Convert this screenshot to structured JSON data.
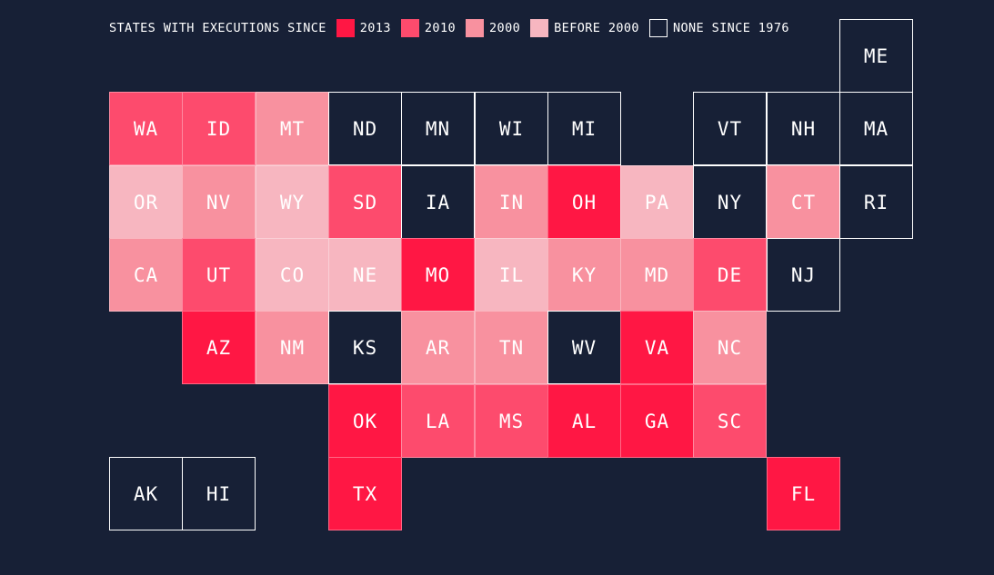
{
  "chart_data": {
    "type": "heatmap",
    "legend": {
      "title": "STATES WITH EXECUTIONS SINCE",
      "items": [
        {
          "key": "2013",
          "label": "2013",
          "color": "#ff1744"
        },
        {
          "key": "2010",
          "label": "2010",
          "color": "#fd4b6d"
        },
        {
          "key": "2000",
          "label": "2000",
          "color": "#f8919f"
        },
        {
          "key": "before2000",
          "label": "BEFORE 2000",
          "color": "#f7b6c0"
        },
        {
          "key": "none",
          "label": "NONE SINCE 1976",
          "color": "#172036"
        }
      ]
    },
    "states": [
      {
        "abbr": "ME",
        "category": "none",
        "col": 10,
        "row": 0
      },
      {
        "abbr": "WA",
        "category": "2010",
        "col": 0,
        "row": 1
      },
      {
        "abbr": "ID",
        "category": "2010",
        "col": 1,
        "row": 1
      },
      {
        "abbr": "MT",
        "category": "2000",
        "col": 2,
        "row": 1
      },
      {
        "abbr": "ND",
        "category": "none",
        "col": 3,
        "row": 1
      },
      {
        "abbr": "MN",
        "category": "none",
        "col": 4,
        "row": 1
      },
      {
        "abbr": "WI",
        "category": "none",
        "col": 5,
        "row": 1
      },
      {
        "abbr": "MI",
        "category": "none",
        "col": 6,
        "row": 1
      },
      {
        "abbr": "VT",
        "category": "none",
        "col": 8,
        "row": 1
      },
      {
        "abbr": "NH",
        "category": "none",
        "col": 9,
        "row": 1
      },
      {
        "abbr": "MA",
        "category": "none",
        "col": 10,
        "row": 1
      },
      {
        "abbr": "OR",
        "category": "before2000",
        "col": 0,
        "row": 2
      },
      {
        "abbr": "NV",
        "category": "2000",
        "col": 1,
        "row": 2
      },
      {
        "abbr": "WY",
        "category": "before2000",
        "col": 2,
        "row": 2
      },
      {
        "abbr": "SD",
        "category": "2010",
        "col": 3,
        "row": 2
      },
      {
        "abbr": "IA",
        "category": "none",
        "col": 4,
        "row": 2
      },
      {
        "abbr": "IN",
        "category": "2000",
        "col": 5,
        "row": 2
      },
      {
        "abbr": "OH",
        "category": "2013",
        "col": 6,
        "row": 2
      },
      {
        "abbr": "PA",
        "category": "before2000",
        "col": 7,
        "row": 2
      },
      {
        "abbr": "NY",
        "category": "none",
        "col": 8,
        "row": 2
      },
      {
        "abbr": "CT",
        "category": "2000",
        "col": 9,
        "row": 2
      },
      {
        "abbr": "RI",
        "category": "none",
        "col": 10,
        "row": 2
      },
      {
        "abbr": "CA",
        "category": "2000",
        "col": 0,
        "row": 3
      },
      {
        "abbr": "UT",
        "category": "2010",
        "col": 1,
        "row": 3
      },
      {
        "abbr": "CO",
        "category": "before2000",
        "col": 2,
        "row": 3
      },
      {
        "abbr": "NE",
        "category": "before2000",
        "col": 3,
        "row": 3
      },
      {
        "abbr": "MO",
        "category": "2013",
        "col": 4,
        "row": 3
      },
      {
        "abbr": "IL",
        "category": "before2000",
        "col": 5,
        "row": 3
      },
      {
        "abbr": "KY",
        "category": "2000",
        "col": 6,
        "row": 3
      },
      {
        "abbr": "MD",
        "category": "2000",
        "col": 7,
        "row": 3
      },
      {
        "abbr": "DE",
        "category": "2010",
        "col": 8,
        "row": 3
      },
      {
        "abbr": "NJ",
        "category": "none",
        "col": 9,
        "row": 3
      },
      {
        "abbr": "AZ",
        "category": "2013",
        "col": 1,
        "row": 4
      },
      {
        "abbr": "NM",
        "category": "2000",
        "col": 2,
        "row": 4
      },
      {
        "abbr": "KS",
        "category": "none",
        "col": 3,
        "row": 4
      },
      {
        "abbr": "AR",
        "category": "2000",
        "col": 4,
        "row": 4
      },
      {
        "abbr": "TN",
        "category": "2000",
        "col": 5,
        "row": 4
      },
      {
        "abbr": "WV",
        "category": "none",
        "col": 6,
        "row": 4
      },
      {
        "abbr": "VA",
        "category": "2013",
        "col": 7,
        "row": 4
      },
      {
        "abbr": "NC",
        "category": "2000",
        "col": 8,
        "row": 4
      },
      {
        "abbr": "OK",
        "category": "2013",
        "col": 3,
        "row": 5
      },
      {
        "abbr": "LA",
        "category": "2010",
        "col": 4,
        "row": 5
      },
      {
        "abbr": "MS",
        "category": "2010",
        "col": 5,
        "row": 5
      },
      {
        "abbr": "AL",
        "category": "2013",
        "col": 6,
        "row": 5
      },
      {
        "abbr": "GA",
        "category": "2013",
        "col": 7,
        "row": 5
      },
      {
        "abbr": "SC",
        "category": "2010",
        "col": 8,
        "row": 5
      },
      {
        "abbr": "AK",
        "category": "none",
        "col": 0,
        "row": 6
      },
      {
        "abbr": "HI",
        "category": "none",
        "col": 1,
        "row": 6
      },
      {
        "abbr": "TX",
        "category": "2013",
        "col": 3,
        "row": 6
      },
      {
        "abbr": "FL",
        "category": "2013",
        "col": 9,
        "row": 6
      }
    ]
  }
}
